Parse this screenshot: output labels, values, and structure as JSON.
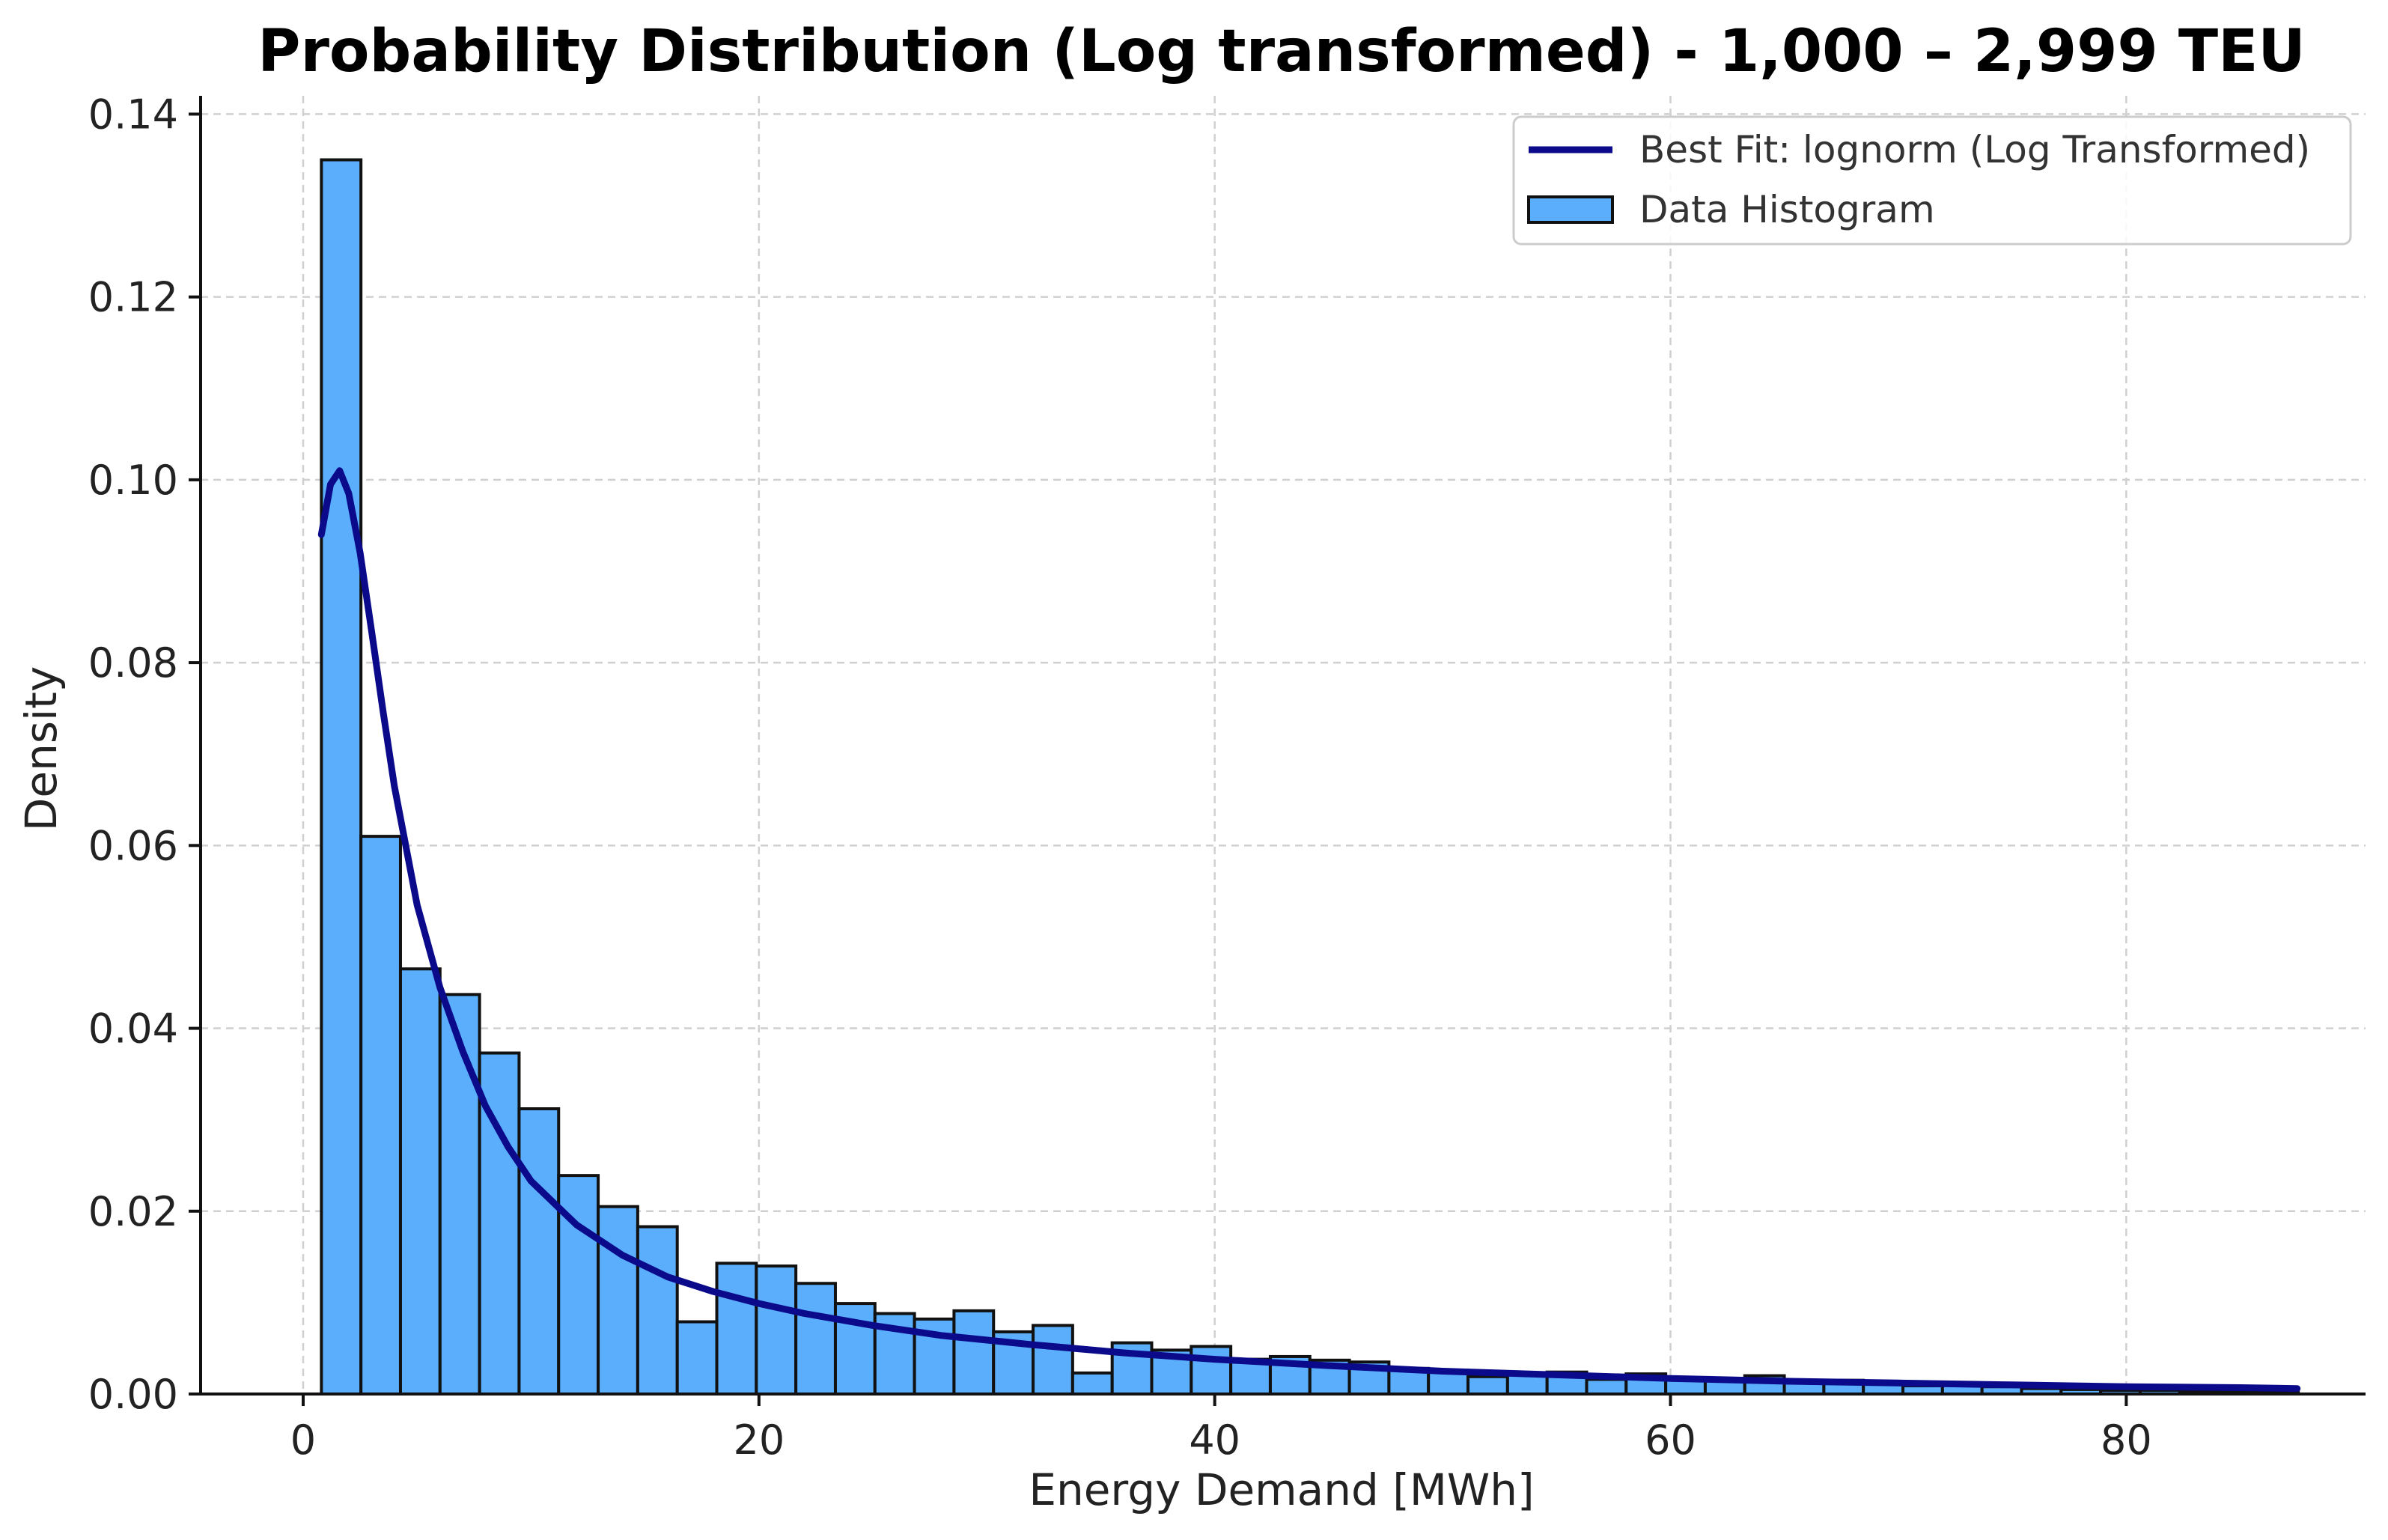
{
  "chart_data": {
    "type": "bar",
    "title": "Probability Distribution (Log transformed) - 1,000 – 2,999 TEU",
    "xlabel": "Energy Demand [MWh]",
    "ylabel": "Density",
    "xlim": [
      -4.5,
      90.5
    ],
    "ylim": [
      0,
      0.142
    ],
    "xticks": [
      0,
      20,
      40,
      60,
      80
    ],
    "yticks": [
      0.0,
      0.02,
      0.04,
      0.06,
      0.08,
      0.1,
      0.12,
      0.14
    ],
    "xtick_labels": [
      "0",
      "20",
      "40",
      "60",
      "80"
    ],
    "ytick_labels": [
      "0.00",
      "0.02",
      "0.04",
      "0.06",
      "0.08",
      "0.10",
      "0.12",
      "0.14"
    ],
    "grid": true,
    "legend_position": "top-right",
    "legend": [
      {
        "label": "Best Fit: lognorm (Log Transformed)",
        "kind": "line",
        "color": "#0a0a8a"
      },
      {
        "label": "Data Histogram",
        "kind": "patch",
        "color": "#5aaefc"
      }
    ],
    "histogram": {
      "name": "Data Histogram",
      "color": "#5aaefc",
      "edge_color": "#111111",
      "bin_start": 0.8,
      "bin_width": 1.735,
      "values": [
        0.135,
        0.061,
        0.0465,
        0.0437,
        0.0373,
        0.0312,
        0.0239,
        0.0205,
        0.0183,
        0.0079,
        0.0143,
        0.014,
        0.0121,
        0.0099,
        0.0088,
        0.0082,
        0.0091,
        0.0068,
        0.0075,
        0.0023,
        0.0056,
        0.0048,
        0.0052,
        0.0038,
        0.0041,
        0.0037,
        0.0035,
        0.0028,
        0.0026,
        0.0019,
        0.0022,
        0.0024,
        0.0016,
        0.0022,
        0.0018,
        0.0015,
        0.002,
        0.0013,
        0.0015,
        0.0011,
        0.0009,
        0.0012,
        0.0008,
        0.0006,
        0.0005,
        0.0004,
        0.0004,
        0.0003,
        0.0003,
        0.0002
      ]
    },
    "fit_line": {
      "name": "Best Fit: lognorm (Log Transformed)",
      "color": "#0a0a8a",
      "x": [
        0.8,
        1.2,
        1.6,
        2.0,
        2.5,
        3.0,
        3.5,
        4.0,
        5.0,
        6.0,
        7.0,
        8.0,
        9.0,
        10.0,
        12.0,
        14.0,
        16.0,
        18.0,
        20.0,
        22.0,
        25.0,
        28.0,
        32.0,
        36.0,
        40.0,
        45.0,
        50.0,
        55.0,
        60.0,
        65.0,
        70.0,
        75.0,
        80.0,
        85.0,
        87.5
      ],
      "y": [
        0.094,
        0.0995,
        0.101,
        0.0985,
        0.092,
        0.0835,
        0.0748,
        0.0665,
        0.0535,
        0.0445,
        0.0375,
        0.0315,
        0.027,
        0.0233,
        0.0185,
        0.0152,
        0.0128,
        0.0112,
        0.0099,
        0.0088,
        0.0075,
        0.0064,
        0.0054,
        0.0045,
        0.0038,
        0.0031,
        0.0025,
        0.0021,
        0.0017,
        0.0014,
        0.0012,
        0.001,
        0.0008,
        0.0007,
        0.0006
      ]
    }
  }
}
